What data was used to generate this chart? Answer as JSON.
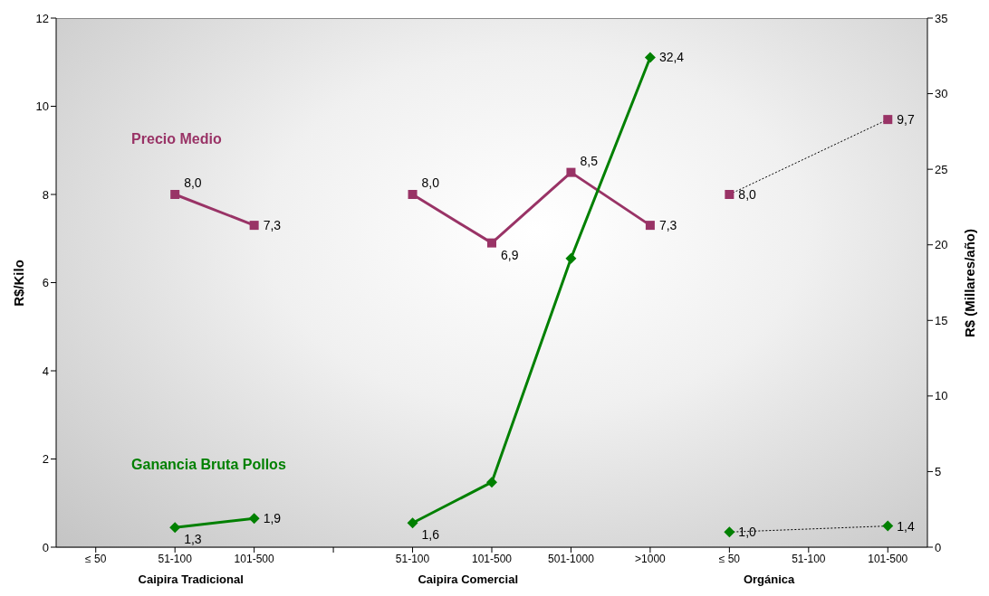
{
  "chart_data": {
    "type": "line",
    "categories": [
      "≤ 50",
      "51-100",
      "101-500",
      null,
      "51-100",
      "101-500",
      "501-1000",
      ">1000",
      "≤ 50",
      "51-100",
      "101-500"
    ],
    "annotations": [
      "Caipira Tradicional",
      "Caipira Comercial",
      "Orgánica"
    ],
    "ylabel": "R$/Kilo",
    "y2label": "R$ (Millares/año)",
    "ylim": [
      0,
      12
    ],
    "yticks": [
      0,
      2,
      4,
      6,
      8,
      10,
      12
    ],
    "y2lim": [
      0,
      35
    ],
    "y2ticks": [
      0,
      5,
      10,
      15,
      20,
      25,
      30,
      35
    ],
    "series": [
      {
        "name": "Precio Medio",
        "color": "#993366",
        "marker": "square",
        "line_style": "solid",
        "values": [
          null,
          8.0,
          7.3,
          null,
          8.0,
          6.9,
          8.5,
          7.3,
          null,
          null,
          null
        ],
        "value_labels": [
          null,
          "8,0",
          "7,3",
          null,
          "8,0",
          "6,9",
          "8,5",
          "7,3",
          null,
          null,
          null
        ]
      },
      {
        "type": "line",
        "color": "#000000",
        "marker": "none",
        "line_style": "dotted",
        "values": [
          null,
          null,
          null,
          null,
          null,
          null,
          null,
          null,
          8.0,
          null,
          9.7
        ]
      },
      {
        "type": "scatter",
        "color": "#993366",
        "marker": "square",
        "values": [
          null,
          null,
          null,
          null,
          null,
          null,
          null,
          null,
          8.0,
          null,
          9.7
        ],
        "value_labels": [
          null,
          null,
          null,
          null,
          null,
          null,
          null,
          null,
          "8,0",
          null,
          "9,7"
        ]
      },
      {
        "name": "Ganancia Bruta Pollos",
        "axis": "y2",
        "color": "#008000",
        "marker": "diamond",
        "line_style": "solid",
        "values": [
          null,
          1.3,
          1.9,
          null,
          1.6,
          4.3,
          19.1,
          32.4,
          null,
          null,
          null
        ],
        "value_labels": [
          null,
          "1,3",
          "1,9",
          null,
          "1,6",
          null,
          null,
          "32,4",
          null,
          null,
          null
        ]
      },
      {
        "type": "line",
        "axis": "y2",
        "color": "#000000",
        "marker": "none",
        "line_style": "dotted",
        "values": [
          null,
          null,
          null,
          null,
          null,
          null,
          null,
          null,
          1.0,
          null,
          1.4
        ]
      },
      {
        "type": "scatter",
        "axis": "y2",
        "color": "#008000",
        "marker": "diamond",
        "values": [
          null,
          null,
          null,
          null,
          null,
          null,
          null,
          null,
          1.0,
          null,
          1.4
        ],
        "value_labels": [
          null,
          null,
          null,
          null,
          null,
          null,
          null,
          null,
          "1,0",
          null,
          "1,4"
        ]
      }
    ]
  }
}
